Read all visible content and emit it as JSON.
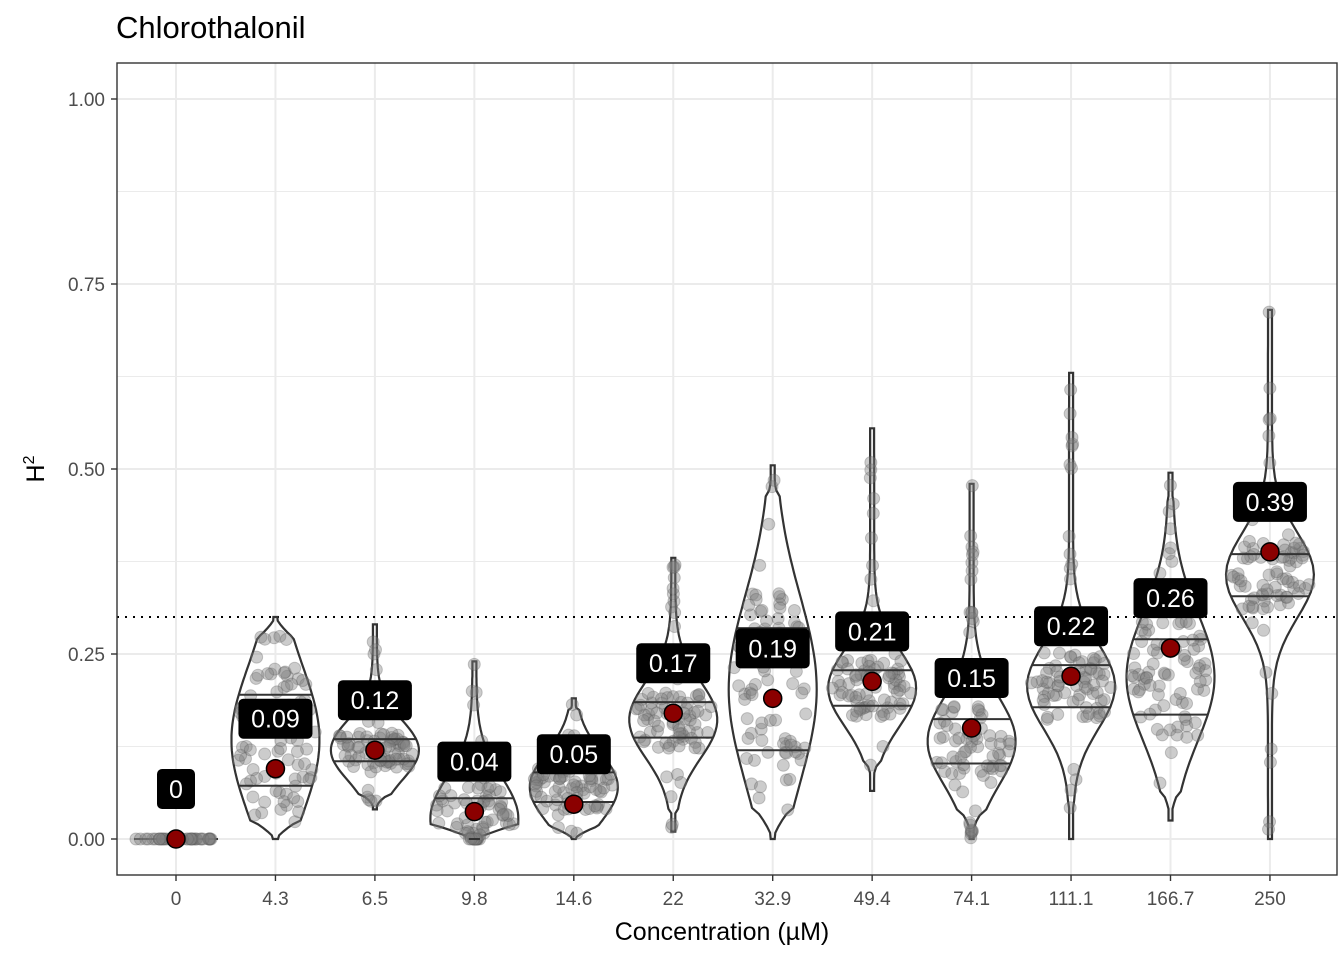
{
  "chart_data": {
    "type": "violin",
    "title": "Chlorothalonil",
    "xlabel": "Concentration (µM)",
    "ylabel": "H",
    "ylabel_superscript": "2",
    "ylim": [
      -0.05,
      1.05
    ],
    "yticks": [
      0.0,
      0.25,
      0.5,
      0.75,
      1.0
    ],
    "ytick_labels": [
      "0.00",
      "0.25",
      "0.50",
      "0.75",
      "1.00"
    ],
    "threshold": 0.3,
    "threshold_style": "dotted",
    "grid": true,
    "categories": [
      "0",
      "4.3",
      "6.5",
      "9.8",
      "14.6",
      "22",
      "32.9",
      "49.4",
      "74.1",
      "111.1",
      "166.7",
      "250"
    ],
    "means": [
      0,
      0.095,
      0.12,
      0.037,
      0.047,
      0.17,
      0.19,
      0.213,
      0.15,
      0.22,
      0.258,
      0.388
    ],
    "mean_labels": [
      "0",
      "0.09",
      "0.12",
      "0.04",
      "0.05",
      "0.17",
      "0.19",
      "0.21",
      "0.15",
      "0.22",
      "0.26",
      "0.39"
    ],
    "quartiles": [
      [
        0,
        0,
        0
      ],
      [
        0.072,
        0.135,
        0.195
      ],
      [
        0.105,
        0.115,
        0.135
      ],
      [
        0.0,
        0.02,
        0.055
      ],
      [
        0.05,
        0.05,
        0.09
      ],
      [
        0.137,
        0.17,
        0.185
      ],
      [
        0.12,
        0.19,
        0.285
      ],
      [
        0.18,
        0.21,
        0.228
      ],
      [
        0.102,
        0.14,
        0.162
      ],
      [
        0.178,
        0.21,
        0.235
      ],
      [
        0.168,
        0.25,
        0.27
      ],
      [
        0.328,
        0.38,
        0.385
      ]
    ],
    "ranges": [
      [
        0,
        0
      ],
      [
        0,
        0.3
      ],
      [
        0.04,
        0.29
      ],
      [
        0,
        0.24
      ],
      [
        0,
        0.19
      ],
      [
        0.01,
        0.38
      ],
      [
        0,
        0.505
      ],
      [
        0.065,
        0.555
      ],
      [
        0,
        0.48
      ],
      [
        0,
        0.63
      ],
      [
        0.025,
        0.495
      ],
      [
        0,
        0.715
      ]
    ],
    "colors": {
      "violin_stroke": "#333333",
      "points": "#808080",
      "mean_fill": "#8b0000",
      "label_bg": "#000000",
      "label_text": "#ffffff",
      "grid": "#ebebeb"
    }
  }
}
